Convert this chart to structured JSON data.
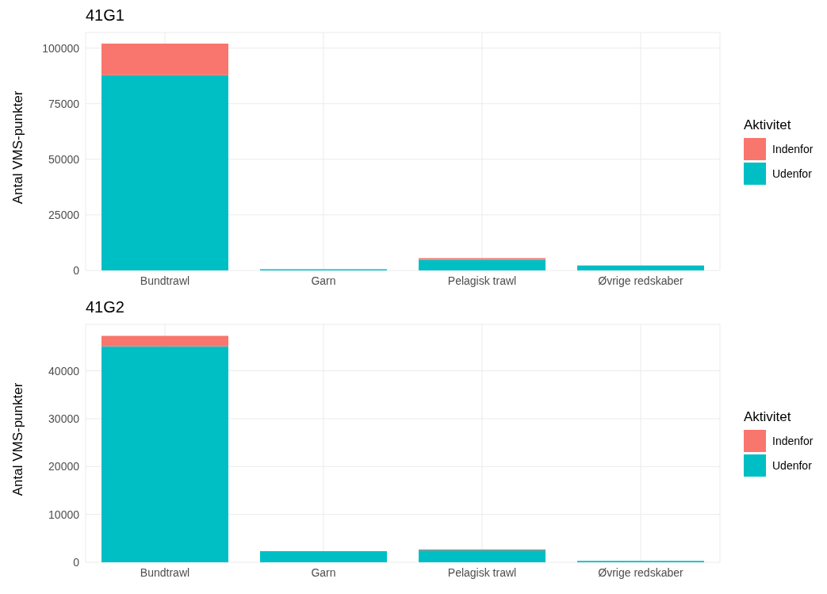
{
  "chart_data": [
    {
      "type": "bar",
      "title": "41G1",
      "ylabel": "Antal VMS-punkter",
      "legend_title": "Aktivitet",
      "categories": [
        "Bundtrawl",
        "Garn",
        "Pelagisk trawl",
        "Øvrige redskaber"
      ],
      "stacked": true,
      "ylim": [
        0,
        107000
      ],
      "yticks": [
        0,
        25000,
        50000,
        75000,
        100000
      ],
      "grid": true,
      "legend": "right",
      "series": [
        {
          "name": "Udenfor",
          "color": "#00bfc4",
          "values": [
            87800,
            500,
            4700,
            2200
          ]
        },
        {
          "name": "Indenfor",
          "color": "#f8766d",
          "values": [
            14200,
            0,
            800,
            0
          ]
        }
      ]
    },
    {
      "type": "bar",
      "title": "41G2",
      "ylabel": "Antal VMS-punkter",
      "legend_title": "Aktivitet",
      "categories": [
        "Bundtrawl",
        "Garn",
        "Pelagisk trawl",
        "Øvrige redskaber"
      ],
      "stacked": true,
      "ylim": [
        0,
        49700
      ],
      "yticks": [
        0,
        10000,
        20000,
        30000,
        40000
      ],
      "grid": true,
      "legend": "right",
      "series": [
        {
          "name": "Udenfor",
          "color": "#00bfc4",
          "values": [
            45100,
            2300,
            2500,
            300
          ]
        },
        {
          "name": "Indenfor",
          "color": "#f8766d",
          "values": [
            2200,
            0,
            200,
            0
          ]
        }
      ]
    }
  ]
}
